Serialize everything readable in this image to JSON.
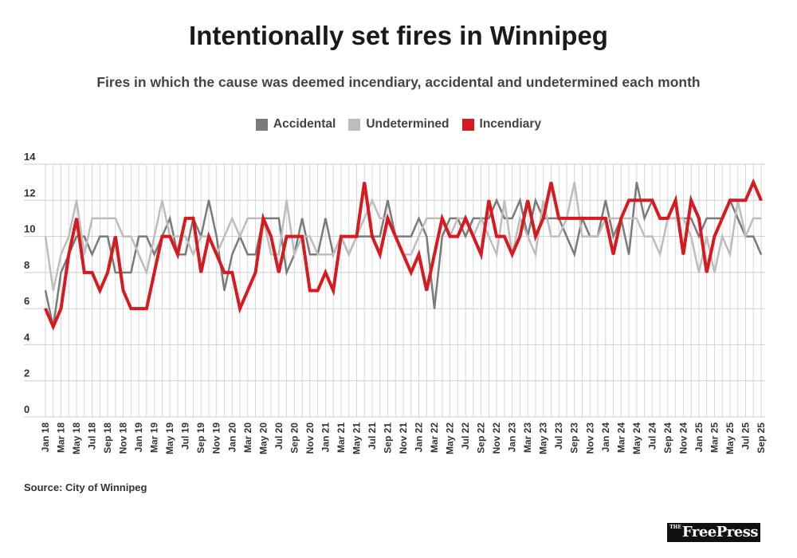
{
  "chart_data": {
    "type": "line",
    "title": "Intentionally set fires in Winnipeg",
    "subtitle": "Fires in which the cause was deemed incendiary, accidental and undetermined each month",
    "xlabel": "",
    "ylabel": "",
    "ylim": [
      0,
      14
    ],
    "yticks": [
      0,
      2,
      4,
      6,
      8,
      10,
      12,
      14
    ],
    "grid": true,
    "legend_placement": "top-center",
    "x": [
      "Jan 18",
      "Feb 18",
      "Mar 18",
      "Apr 18",
      "May 18",
      "Jun 18",
      "Jul 18",
      "Aug 18",
      "Sep 18",
      "Oct 18",
      "Nov 18",
      "Dec 18",
      "Jan 19",
      "Feb 19",
      "Mar 19",
      "Apr 19",
      "May 19",
      "Jun 19",
      "Jul 19",
      "Aug 19",
      "Sep 19",
      "Oct 19",
      "Nov 19",
      "Dec 19",
      "Jan 20",
      "Feb 20",
      "Mar 20",
      "Apr 20",
      "May 20",
      "Jun 20",
      "Jul 20",
      "Aug 20",
      "Sep 20",
      "Oct 20",
      "Nov 20",
      "Dec 20",
      "Jan 21",
      "Feb 21",
      "Mar 21",
      "Apr 21",
      "May 21",
      "Jun 21",
      "Jul 21",
      "Aug 21",
      "Sep 21",
      "Oct 21",
      "Nov 21",
      "Dec 21",
      "Jan 22",
      "Feb 22",
      "Mar 22",
      "Apr 22",
      "May 22",
      "Jun 22",
      "Jul 22",
      "Aug 22",
      "Sep 22",
      "Oct 22",
      "Nov 22",
      "Dec 22",
      "Jan 23",
      "Feb 23",
      "Mar 23",
      "Apr 23",
      "May 23",
      "Jun 23",
      "Jul 23",
      "Aug 23",
      "Sep 23",
      "Oct 23",
      "Nov 23",
      "Dec 23",
      "Jan 24",
      "Feb 24",
      "Mar 24",
      "Apr 24",
      "May 24",
      "Jun 24",
      "Jul 24",
      "Aug 24",
      "Sep 24",
      "Oct 24",
      "Nov 24",
      "Dec 24",
      "Jan 25",
      "Feb 25",
      "Mar 25",
      "Apr 25",
      "May 25",
      "Jun 25",
      "Jul 25",
      "Aug 25",
      "Sep 25"
    ],
    "series": [
      {
        "name": "Accidental",
        "color": "#7a7a7a",
        "values": [
          7,
          5,
          8,
          9,
          10,
          10,
          9,
          10,
          10,
          8,
          8,
          8,
          10,
          10,
          9,
          10,
          11,
          9,
          9,
          11,
          10,
          12,
          10,
          7,
          9,
          10,
          9,
          9,
          11,
          11,
          11,
          8,
          9,
          11,
          9,
          9,
          11,
          9,
          10,
          9,
          10,
          10,
          10,
          10,
          12,
          10,
          10,
          10,
          11,
          10,
          6,
          10,
          11,
          11,
          10,
          11,
          11,
          11,
          12,
          11,
          11,
          12,
          10,
          12,
          11,
          11,
          11,
          10,
          9,
          11,
          10,
          10,
          12,
          10,
          11,
          9,
          13,
          11,
          12,
          11,
          11,
          11,
          11,
          11,
          10,
          11,
          11,
          11,
          12,
          11,
          10,
          10,
          9
        ]
      },
      {
        "name": "Undetermined",
        "color": "#bdbdbd",
        "values": [
          10,
          7,
          9,
          10,
          12,
          9,
          11,
          11,
          11,
          11,
          10,
          10,
          9,
          8,
          10,
          12,
          10,
          10,
          10,
          9,
          10,
          10,
          9,
          10,
          11,
          10,
          11,
          11,
          11,
          9,
          9,
          12,
          9,
          10,
          10,
          9,
          9,
          9,
          10,
          9,
          10,
          11,
          12,
          11,
          11,
          10,
          9,
          9,
          10,
          11,
          11,
          11,
          10,
          11,
          11,
          10,
          11,
          10,
          9,
          12,
          9,
          11,
          10,
          9,
          12,
          10,
          10,
          11,
          13,
          10,
          10,
          10,
          11,
          11,
          11,
          11,
          11,
          10,
          10,
          9,
          11,
          11,
          11,
          10,
          8,
          10,
          8,
          10,
          9,
          12,
          10,
          11,
          11
        ]
      },
      {
        "name": "Incendiary",
        "color": "#d71920",
        "values": [
          6,
          5,
          6,
          9,
          11,
          8,
          8,
          7,
          8,
          10,
          7,
          6,
          6,
          6,
          8,
          10,
          10,
          9,
          11,
          11,
          8,
          10,
          9,
          8,
          8,
          6,
          7,
          8,
          11,
          10,
          8,
          10,
          10,
          10,
          7,
          7,
          8,
          7,
          10,
          10,
          10,
          13,
          10,
          9,
          11,
          10,
          9,
          8,
          9,
          7,
          9,
          11,
          10,
          10,
          11,
          10,
          9,
          12,
          10,
          10,
          9,
          10,
          12,
          10,
          11,
          13,
          11,
          11,
          11,
          11,
          11,
          11,
          11,
          9,
          11,
          12,
          12,
          12,
          12,
          11,
          11,
          12,
          9,
          12,
          11,
          8,
          10,
          11,
          12,
          12,
          12,
          13,
          12
        ]
      }
    ]
  },
  "source": "Source: City of Winnipeg",
  "logo": {
    "small": "THE",
    "text": "FreePress"
  }
}
